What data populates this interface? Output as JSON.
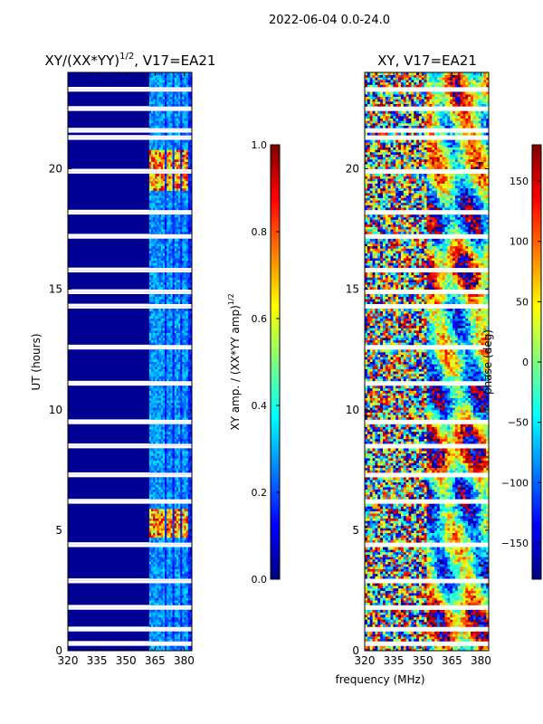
{
  "figure": {
    "suptitle": "2022-06-04 0.0-24.0",
    "xlabel": "frequency (MHz)",
    "ylabel": "UT (hours)"
  },
  "colormap": {
    "name": "jet",
    "stops": [
      "#00007f",
      "#0000ff",
      "#007fff",
      "#00ffff",
      "#7fff7f",
      "#ffff00",
      "#ff7f00",
      "#ff0000",
      "#7f0000"
    ]
  },
  "chart_data": [
    {
      "type": "heatmap",
      "title_base": "XY/(XX*YY)",
      "title_exp": "1/2",
      "title_suffix": ", V17=EA21",
      "xlim": [
        320,
        384
      ],
      "ylim": [
        0,
        24
      ],
      "xticks": [
        320,
        335,
        350,
        365,
        380
      ],
      "yticks": [
        0,
        5,
        10,
        15,
        20
      ],
      "ylabel": "UT (hours)",
      "colorbar": {
        "label_base": "XY amp. / (XX*YY amp)",
        "label_exp": "1/2",
        "range": [
          0.0,
          1.0
        ],
        "ticks": [
          "0.0",
          "0.2",
          "0.4",
          "0.6",
          "0.8",
          "1.0"
        ]
      },
      "high_amplitude_channels_MHz": [
        363,
        366,
        368,
        372,
        376,
        380
      ],
      "high_amplitude_hours": [
        [
          4.7,
          5.9
        ],
        [
          19.1,
          20.8
        ]
      ]
    },
    {
      "type": "heatmap",
      "title": "XY, V17=EA21",
      "xlim": [
        320,
        384
      ],
      "ylim": [
        0,
        24
      ],
      "xticks": [
        320,
        335,
        350,
        365,
        380
      ],
      "yticks": [
        0,
        5,
        10,
        15,
        20
      ],
      "colorbar": {
        "label": "phase (deg)",
        "range": [
          -180,
          180
        ],
        "ticks": [
          "−150",
          "−100",
          "−50",
          "0",
          "50",
          "100",
          "150"
        ]
      }
    }
  ]
}
